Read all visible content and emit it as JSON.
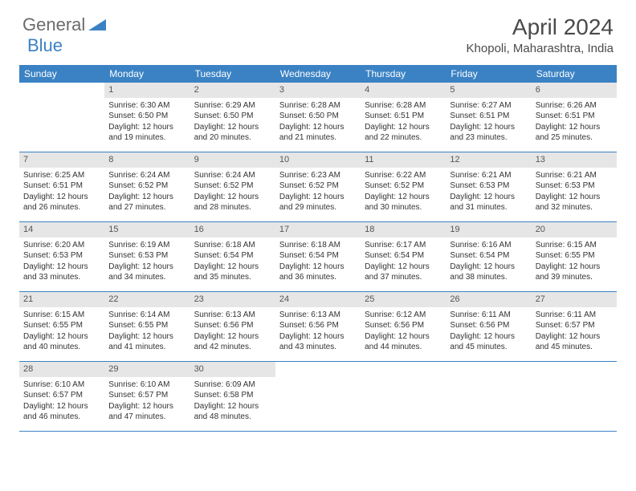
{
  "logo": {
    "text1": "General",
    "text2": "Blue"
  },
  "title": "April 2024",
  "location": "Khopoli, Maharashtra, India",
  "colors": {
    "header_bar": "#3b82c4",
    "daynum_bg": "#e6e6e6",
    "text": "#333333",
    "logo_gray": "#6b6b6b",
    "logo_blue": "#3b82c4"
  },
  "weekdays": [
    "Sunday",
    "Monday",
    "Tuesday",
    "Wednesday",
    "Thursday",
    "Friday",
    "Saturday"
  ],
  "weeks": [
    [
      {
        "n": "",
        "empty": true
      },
      {
        "n": "1",
        "sr": "Sunrise: 6:30 AM",
        "ss": "Sunset: 6:50 PM",
        "d1": "Daylight: 12 hours",
        "d2": "and 19 minutes."
      },
      {
        "n": "2",
        "sr": "Sunrise: 6:29 AM",
        "ss": "Sunset: 6:50 PM",
        "d1": "Daylight: 12 hours",
        "d2": "and 20 minutes."
      },
      {
        "n": "3",
        "sr": "Sunrise: 6:28 AM",
        "ss": "Sunset: 6:50 PM",
        "d1": "Daylight: 12 hours",
        "d2": "and 21 minutes."
      },
      {
        "n": "4",
        "sr": "Sunrise: 6:28 AM",
        "ss": "Sunset: 6:51 PM",
        "d1": "Daylight: 12 hours",
        "d2": "and 22 minutes."
      },
      {
        "n": "5",
        "sr": "Sunrise: 6:27 AM",
        "ss": "Sunset: 6:51 PM",
        "d1": "Daylight: 12 hours",
        "d2": "and 23 minutes."
      },
      {
        "n": "6",
        "sr": "Sunrise: 6:26 AM",
        "ss": "Sunset: 6:51 PM",
        "d1": "Daylight: 12 hours",
        "d2": "and 25 minutes."
      }
    ],
    [
      {
        "n": "7",
        "sr": "Sunrise: 6:25 AM",
        "ss": "Sunset: 6:51 PM",
        "d1": "Daylight: 12 hours",
        "d2": "and 26 minutes."
      },
      {
        "n": "8",
        "sr": "Sunrise: 6:24 AM",
        "ss": "Sunset: 6:52 PM",
        "d1": "Daylight: 12 hours",
        "d2": "and 27 minutes."
      },
      {
        "n": "9",
        "sr": "Sunrise: 6:24 AM",
        "ss": "Sunset: 6:52 PM",
        "d1": "Daylight: 12 hours",
        "d2": "and 28 minutes."
      },
      {
        "n": "10",
        "sr": "Sunrise: 6:23 AM",
        "ss": "Sunset: 6:52 PM",
        "d1": "Daylight: 12 hours",
        "d2": "and 29 minutes."
      },
      {
        "n": "11",
        "sr": "Sunrise: 6:22 AM",
        "ss": "Sunset: 6:52 PM",
        "d1": "Daylight: 12 hours",
        "d2": "and 30 minutes."
      },
      {
        "n": "12",
        "sr": "Sunrise: 6:21 AM",
        "ss": "Sunset: 6:53 PM",
        "d1": "Daylight: 12 hours",
        "d2": "and 31 minutes."
      },
      {
        "n": "13",
        "sr": "Sunrise: 6:21 AM",
        "ss": "Sunset: 6:53 PM",
        "d1": "Daylight: 12 hours",
        "d2": "and 32 minutes."
      }
    ],
    [
      {
        "n": "14",
        "sr": "Sunrise: 6:20 AM",
        "ss": "Sunset: 6:53 PM",
        "d1": "Daylight: 12 hours",
        "d2": "and 33 minutes."
      },
      {
        "n": "15",
        "sr": "Sunrise: 6:19 AM",
        "ss": "Sunset: 6:53 PM",
        "d1": "Daylight: 12 hours",
        "d2": "and 34 minutes."
      },
      {
        "n": "16",
        "sr": "Sunrise: 6:18 AM",
        "ss": "Sunset: 6:54 PM",
        "d1": "Daylight: 12 hours",
        "d2": "and 35 minutes."
      },
      {
        "n": "17",
        "sr": "Sunrise: 6:18 AM",
        "ss": "Sunset: 6:54 PM",
        "d1": "Daylight: 12 hours",
        "d2": "and 36 minutes."
      },
      {
        "n": "18",
        "sr": "Sunrise: 6:17 AM",
        "ss": "Sunset: 6:54 PM",
        "d1": "Daylight: 12 hours",
        "d2": "and 37 minutes."
      },
      {
        "n": "19",
        "sr": "Sunrise: 6:16 AM",
        "ss": "Sunset: 6:54 PM",
        "d1": "Daylight: 12 hours",
        "d2": "and 38 minutes."
      },
      {
        "n": "20",
        "sr": "Sunrise: 6:15 AM",
        "ss": "Sunset: 6:55 PM",
        "d1": "Daylight: 12 hours",
        "d2": "and 39 minutes."
      }
    ],
    [
      {
        "n": "21",
        "sr": "Sunrise: 6:15 AM",
        "ss": "Sunset: 6:55 PM",
        "d1": "Daylight: 12 hours",
        "d2": "and 40 minutes."
      },
      {
        "n": "22",
        "sr": "Sunrise: 6:14 AM",
        "ss": "Sunset: 6:55 PM",
        "d1": "Daylight: 12 hours",
        "d2": "and 41 minutes."
      },
      {
        "n": "23",
        "sr": "Sunrise: 6:13 AM",
        "ss": "Sunset: 6:56 PM",
        "d1": "Daylight: 12 hours",
        "d2": "and 42 minutes."
      },
      {
        "n": "24",
        "sr": "Sunrise: 6:13 AM",
        "ss": "Sunset: 6:56 PM",
        "d1": "Daylight: 12 hours",
        "d2": "and 43 minutes."
      },
      {
        "n": "25",
        "sr": "Sunrise: 6:12 AM",
        "ss": "Sunset: 6:56 PM",
        "d1": "Daylight: 12 hours",
        "d2": "and 44 minutes."
      },
      {
        "n": "26",
        "sr": "Sunrise: 6:11 AM",
        "ss": "Sunset: 6:56 PM",
        "d1": "Daylight: 12 hours",
        "d2": "and 45 minutes."
      },
      {
        "n": "27",
        "sr": "Sunrise: 6:11 AM",
        "ss": "Sunset: 6:57 PM",
        "d1": "Daylight: 12 hours",
        "d2": "and 45 minutes."
      }
    ],
    [
      {
        "n": "28",
        "sr": "Sunrise: 6:10 AM",
        "ss": "Sunset: 6:57 PM",
        "d1": "Daylight: 12 hours",
        "d2": "and 46 minutes."
      },
      {
        "n": "29",
        "sr": "Sunrise: 6:10 AM",
        "ss": "Sunset: 6:57 PM",
        "d1": "Daylight: 12 hours",
        "d2": "and 47 minutes."
      },
      {
        "n": "30",
        "sr": "Sunrise: 6:09 AM",
        "ss": "Sunset: 6:58 PM",
        "d1": "Daylight: 12 hours",
        "d2": "and 48 minutes."
      },
      {
        "n": "",
        "empty": true
      },
      {
        "n": "",
        "empty": true
      },
      {
        "n": "",
        "empty": true
      },
      {
        "n": "",
        "empty": true
      }
    ]
  ]
}
